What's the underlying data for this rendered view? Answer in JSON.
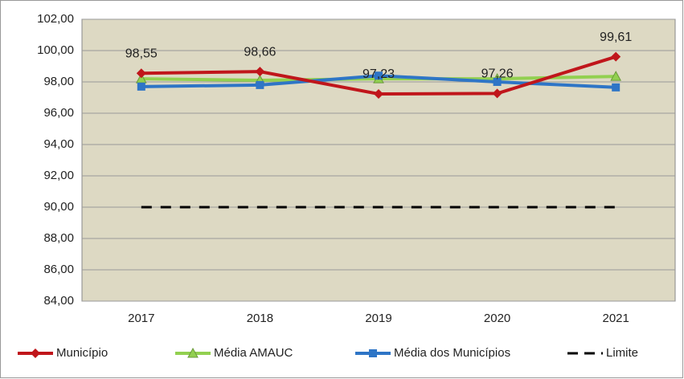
{
  "chart_data": {
    "type": "line",
    "categories": [
      "2017",
      "2018",
      "2019",
      "2020",
      "2021"
    ],
    "series": [
      {
        "name": "Município",
        "color": "#c0161b",
        "marker": "diamond",
        "values": [
          98.55,
          98.66,
          97.23,
          97.26,
          99.61
        ],
        "value_labels": [
          "98,55",
          "98,66",
          "97,23",
          "97,26",
          "99,61"
        ]
      },
      {
        "name": "Média AMAUC",
        "color": "#92d050",
        "marker": "triangle",
        "values": [
          98.2,
          98.1,
          98.2,
          98.2,
          98.35
        ]
      },
      {
        "name": "Média dos Municípios",
        "color": "#2e75c6",
        "marker": "square",
        "values": [
          97.7,
          97.8,
          98.4,
          98.0,
          97.65
        ]
      },
      {
        "name": "Limite",
        "color": "#000000",
        "marker": "none",
        "dashed": true,
        "values": [
          90,
          90,
          90,
          90,
          90
        ]
      }
    ],
    "ylim": [
      84,
      102
    ],
    "yticks": [
      {
        "value": 84,
        "label": "84,00"
      },
      {
        "value": 86,
        "label": "86,00"
      },
      {
        "value": 88,
        "label": "88,00"
      },
      {
        "value": 90,
        "label": "90,00"
      },
      {
        "value": 92,
        "label": "92,00"
      },
      {
        "value": 94,
        "label": "94,00"
      },
      {
        "value": 96,
        "label": "96,00"
      },
      {
        "value": 98,
        "label": "98,00"
      },
      {
        "value": 100,
        "label": "100,00"
      },
      {
        "value": 102,
        "label": "102,00"
      }
    ],
    "grid": true,
    "legend": "bottom",
    "plot_background": "#ddd9c3"
  }
}
